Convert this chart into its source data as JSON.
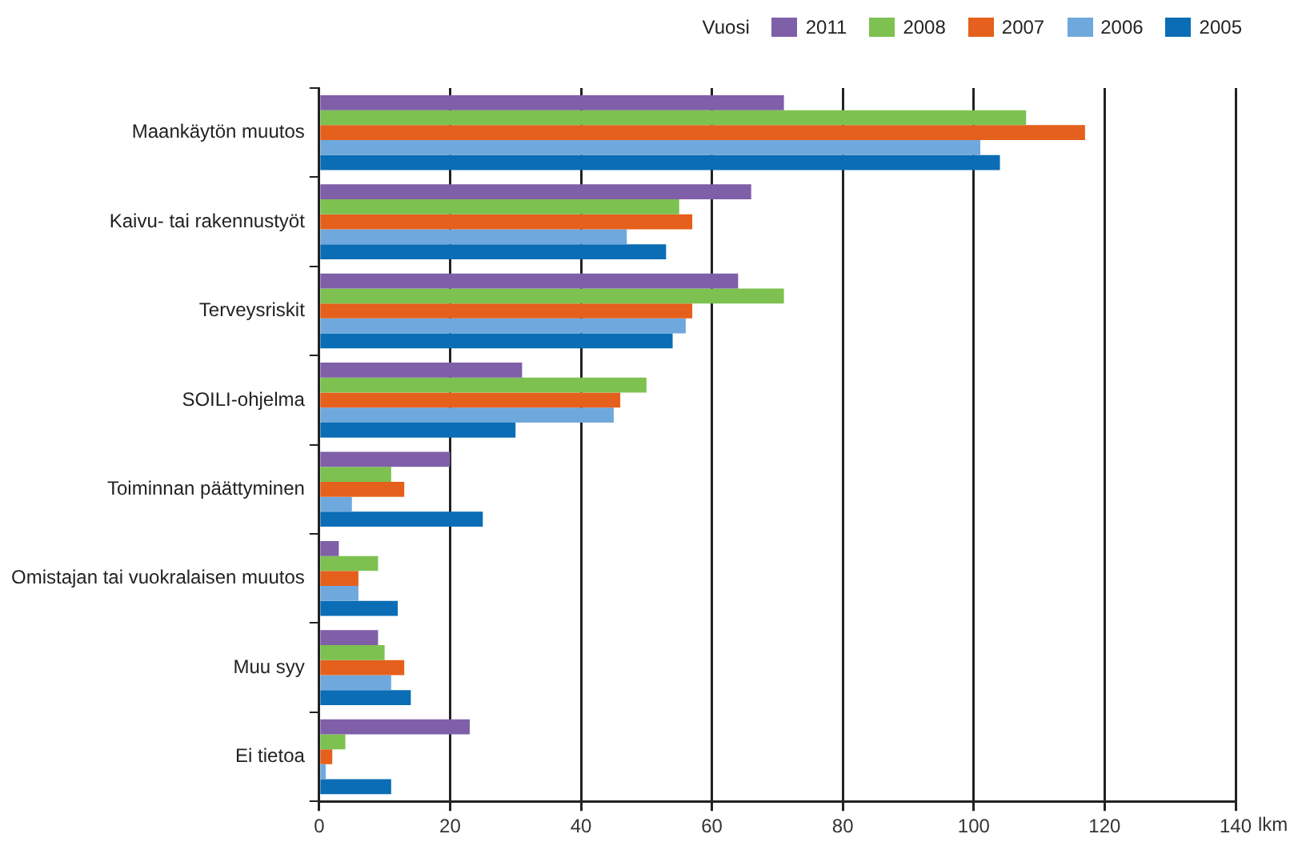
{
  "chart_data": {
    "type": "bar",
    "orientation": "horizontal",
    "xlabel": "lkm",
    "legend_title": "Vuosi",
    "legend": "top right",
    "grid": "x",
    "categories": [
      "Maankäytön muutos",
      "Kaivu- tai rakennustyöt",
      "Terveysriskit",
      "SOILI-ohjelma",
      "Toiminnan päättyminen",
      "Omistajan tai vuokralaisen muutos",
      "Muu syy",
      "Ei tietoa"
    ],
    "series": [
      {
        "name": "2011",
        "color": "#7f5fa8",
        "values": [
          71,
          66,
          64,
          31,
          20,
          3,
          9,
          23
        ]
      },
      {
        "name": "2008",
        "color": "#7dc150",
        "values": [
          108,
          55,
          71,
          50,
          11,
          9,
          10,
          4
        ]
      },
      {
        "name": "2007",
        "color": "#e5601c",
        "values": [
          117,
          57,
          57,
          46,
          13,
          6,
          13,
          2
        ]
      },
      {
        "name": "2006",
        "color": "#6fa8dc",
        "values": [
          101,
          47,
          56,
          45,
          5,
          6,
          11,
          1
        ]
      },
      {
        "name": "2005",
        "color": "#0a6db5",
        "values": [
          104,
          53,
          54,
          30,
          25,
          12,
          14,
          11
        ]
      }
    ],
    "xlim": [
      0,
      140
    ],
    "xticks": [
      0,
      20,
      40,
      60,
      80,
      100,
      120,
      140
    ]
  }
}
